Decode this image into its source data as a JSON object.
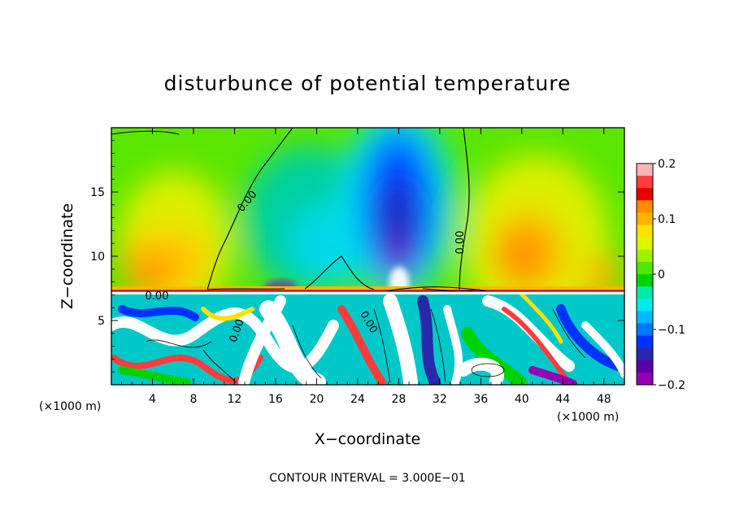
{
  "chart_data": {
    "type": "heatmap",
    "title": "disturbunce of potential temperature",
    "xlabel": "X−coordinate",
    "ylabel": "Z−coordinate",
    "x_unit_left": "(×1000 m)",
    "x_unit_right": "(×1000 m)",
    "xlim": [
      0,
      50
    ],
    "ylim": [
      0,
      20
    ],
    "x_ticks": [
      4,
      8,
      12,
      16,
      20,
      24,
      28,
      32,
      36,
      40,
      44,
      48
    ],
    "x_tick_labels": [
      "4",
      "8",
      "12",
      "16",
      "20",
      "24",
      "28",
      "32",
      "36",
      "40",
      "44",
      "48"
    ],
    "y_ticks": [
      5,
      10,
      15
    ],
    "y_tick_labels": [
      "5",
      "10",
      "15"
    ],
    "colorbar": {
      "range": [
        -0.2,
        0.2
      ],
      "ticks": [
        0.2,
        0.1,
        0,
        -0.1,
        -0.2
      ],
      "tick_labels": [
        "0.2",
        "0.1",
        "0",
        "−0.1",
        "−0.2"
      ],
      "colors": [
        "#ffb4b4",
        "#ff3c3c",
        "#e60000",
        "#ff8c00",
        "#ffb400",
        "#ffe100",
        "#dcf500",
        "#a0f000",
        "#50e600",
        "#00d200",
        "#00ebaa",
        "#00ebeb",
        "#00b9ff",
        "#0078ff",
        "#0032ff",
        "#2828aa",
        "#5a00aa",
        "#9600b4"
      ]
    },
    "contour_labels": [
      "0.00",
      "0.00",
      "0.00",
      "0.00",
      "0.00"
    ],
    "contour_interval_text": "CONTOUR INTERVAL = 3.000E−01"
  }
}
